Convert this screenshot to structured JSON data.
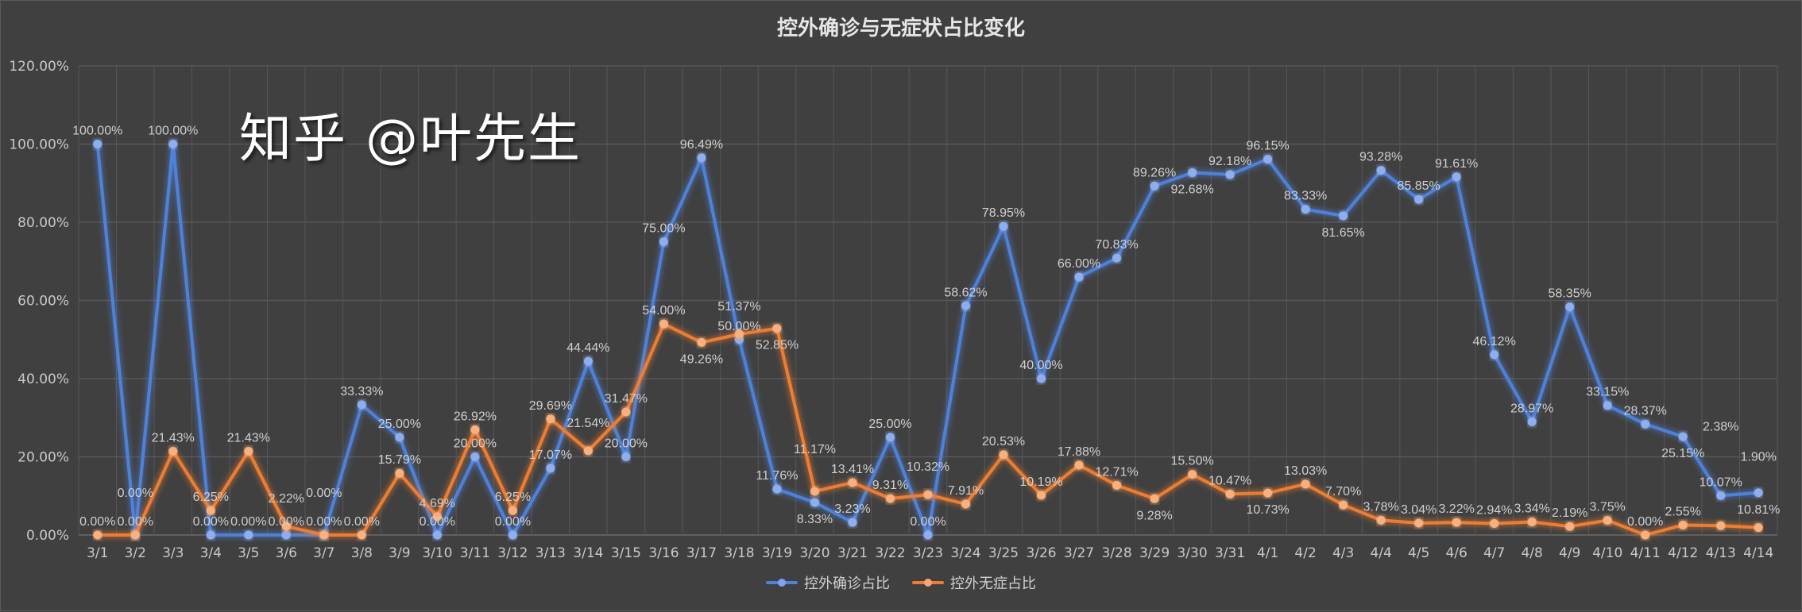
{
  "chart_data": {
    "type": "line",
    "title": "控外确诊与无症状占比变化",
    "xlabel": "",
    "ylabel": "",
    "ylim": [
      0,
      120
    ],
    "yticks": [
      "0.00%",
      "20.00%",
      "40.00%",
      "60.00%",
      "80.00%",
      "100.00%",
      "120.00%"
    ],
    "grid": true,
    "legend": "bottom",
    "categories": [
      "3/1",
      "3/2",
      "3/3",
      "3/4",
      "3/5",
      "3/6",
      "3/7",
      "3/8",
      "3/9",
      "3/10",
      "3/11",
      "3/12",
      "3/13",
      "3/14",
      "3/15",
      "3/16",
      "3/17",
      "3/18",
      "3/19",
      "3/20",
      "3/21",
      "3/22",
      "3/23",
      "3/24",
      "3/25",
      "3/26",
      "3/27",
      "3/28",
      "3/29",
      "3/30",
      "3/31",
      "4/1",
      "4/2",
      "4/3",
      "4/4",
      "4/5",
      "4/6",
      "4/7",
      "4/8",
      "4/9",
      "4/10",
      "4/11",
      "4/12",
      "4/13",
      "4/14"
    ],
    "series": [
      {
        "name": "控外确诊占比",
        "color": "#4f81d9",
        "values": [
          100,
          0,
          100,
          0,
          0,
          0,
          0,
          33.33,
          25,
          0,
          20,
          0,
          17.07,
          44.44,
          20,
          75,
          96.49,
          50,
          11.76,
          8.33,
          3.23,
          25,
          0,
          58.62,
          78.95,
          40,
          66,
          70.83,
          89.26,
          92.68,
          92.18,
          96.15,
          83.33,
          81.65,
          93.28,
          85.85,
          91.61,
          46.12,
          28.97,
          58.35,
          33.15,
          28.37,
          25.15,
          10.07,
          10.81
        ]
      },
      {
        "name": "控外无症占比",
        "color": "#ed7d31",
        "values": [
          0,
          0,
          21.43,
          6.25,
          21.43,
          2.22,
          0,
          0,
          15.79,
          4.69,
          26.92,
          6.25,
          29.69,
          21.54,
          31.47,
          54,
          49.26,
          51.37,
          52.85,
          11.17,
          13.41,
          9.31,
          10.32,
          7.91,
          20.53,
          10.19,
          17.88,
          12.71,
          9.28,
          15.5,
          10.47,
          10.73,
          13.03,
          7.7,
          3.78,
          3.04,
          3.22,
          2.94,
          3.34,
          2.19,
          3.75,
          0,
          2.55,
          2.38,
          1.9
        ]
      }
    ]
  },
  "watermark": "知乎 @叶先生",
  "colors": {
    "background": "#404040",
    "grid": "#575757"
  }
}
